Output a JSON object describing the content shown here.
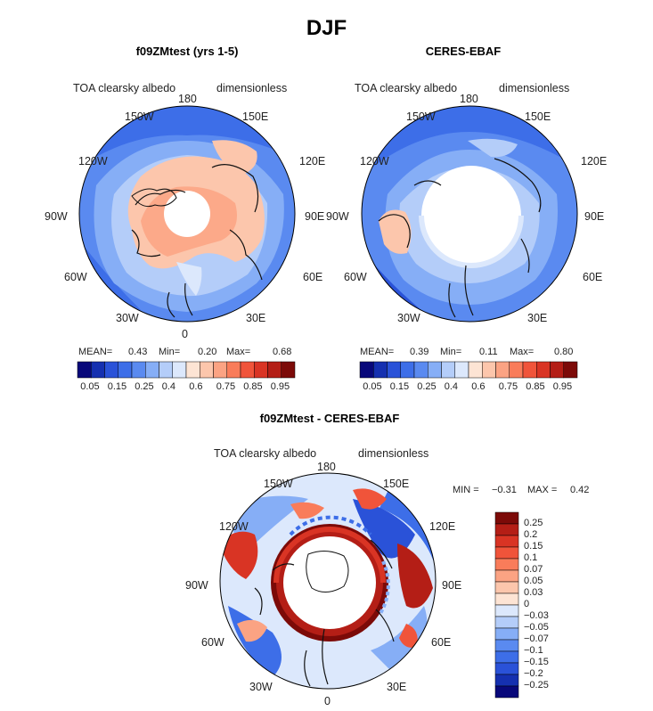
{
  "main_title": "DJF",
  "panels": [
    {
      "id": "model",
      "title": "f09ZMtest (yrs 1-5)",
      "variable": "TOA clearsky albedo",
      "units": "dimensionless",
      "lon_labels": {
        "top": "180",
        "bottom": "0",
        "left": "90W",
        "right": "90E",
        "ul1": "150W",
        "ul2": "120W",
        "ur1": "150E",
        "ur2": "120E",
        "ll1": "60W",
        "ll2": "30W",
        "lr1": "60E",
        "lr2": "30E"
      },
      "stats": {
        "mean_label": "MEAN=",
        "mean": "0.43",
        "min_label": "Min=",
        "min": "0.20",
        "max_label": "Max=",
        "max": "0.68"
      }
    },
    {
      "id": "obs",
      "title": "CERES-EBAF",
      "variable": "TOA clearsky albedo",
      "units": "dimensionless",
      "lon_labels": {
        "top": "180",
        "bottom": "0",
        "left": "90W",
        "right": "90E",
        "ul1": "150W",
        "ul2": "120W",
        "ur1": "150E",
        "ur2": "120E",
        "ll1": "60W",
        "ll2": "30W",
        "lr1": "60E",
        "lr2": "30E"
      },
      "stats": {
        "mean_label": "MEAN=",
        "mean": "0.39",
        "min_label": "Min=",
        "min": "0.11",
        "max_label": "Max=",
        "max": "0.80"
      }
    },
    {
      "id": "diff",
      "title": "f09ZMtest - CERES-EBAF",
      "variable": "TOA clearsky albedo",
      "units": "dimensionless",
      "lon_labels": {
        "top": "180",
        "bottom": "0",
        "left": "90W",
        "right": "90E",
        "ul1": "150W",
        "ul2": "120W",
        "ur1": "150E",
        "ur2": "120E",
        "ll1": "60W",
        "ll2": "30W",
        "lr1": "60E",
        "lr2": "30E"
      },
      "stats": {
        "min_label": "MIN =",
        "min": "−0.31",
        "max_label": "MAX =",
        "max": "0.42"
      }
    }
  ],
  "colorbar_abs": {
    "labels": [
      "0.05",
      "0.15",
      "0.25",
      "0.4",
      "0.6",
      "0.75",
      "0.85",
      "0.95"
    ],
    "colors": [
      "#08087a",
      "#1530b0",
      "#2a52d8",
      "#3d6ee8",
      "#5a8af0",
      "#86aef6",
      "#b4cdf9",
      "#dce8fc",
      "#fde4d4",
      "#fcc6ac",
      "#fba383",
      "#f97c5a",
      "#f0543a",
      "#d93424",
      "#b41e16",
      "#7c0a08"
    ]
  },
  "colorbar_diff": {
    "labels": [
      "0.25",
      "0.2",
      "0.15",
      "0.1",
      "0.07",
      "0.05",
      "0.03",
      "0",
      "−0.03",
      "−0.05",
      "−0.07",
      "−0.1",
      "−0.15",
      "−0.2",
      "−0.25"
    ],
    "colors": [
      "#7c0a08",
      "#b41e16",
      "#d93424",
      "#f0543a",
      "#f97c5a",
      "#fba383",
      "#fcc6ac",
      "#fde4d4",
      "#dce8fc",
      "#b4cdf9",
      "#86aef6",
      "#5a8af0",
      "#3d6ee8",
      "#2a52d8",
      "#1530b0",
      "#08087a"
    ]
  }
}
